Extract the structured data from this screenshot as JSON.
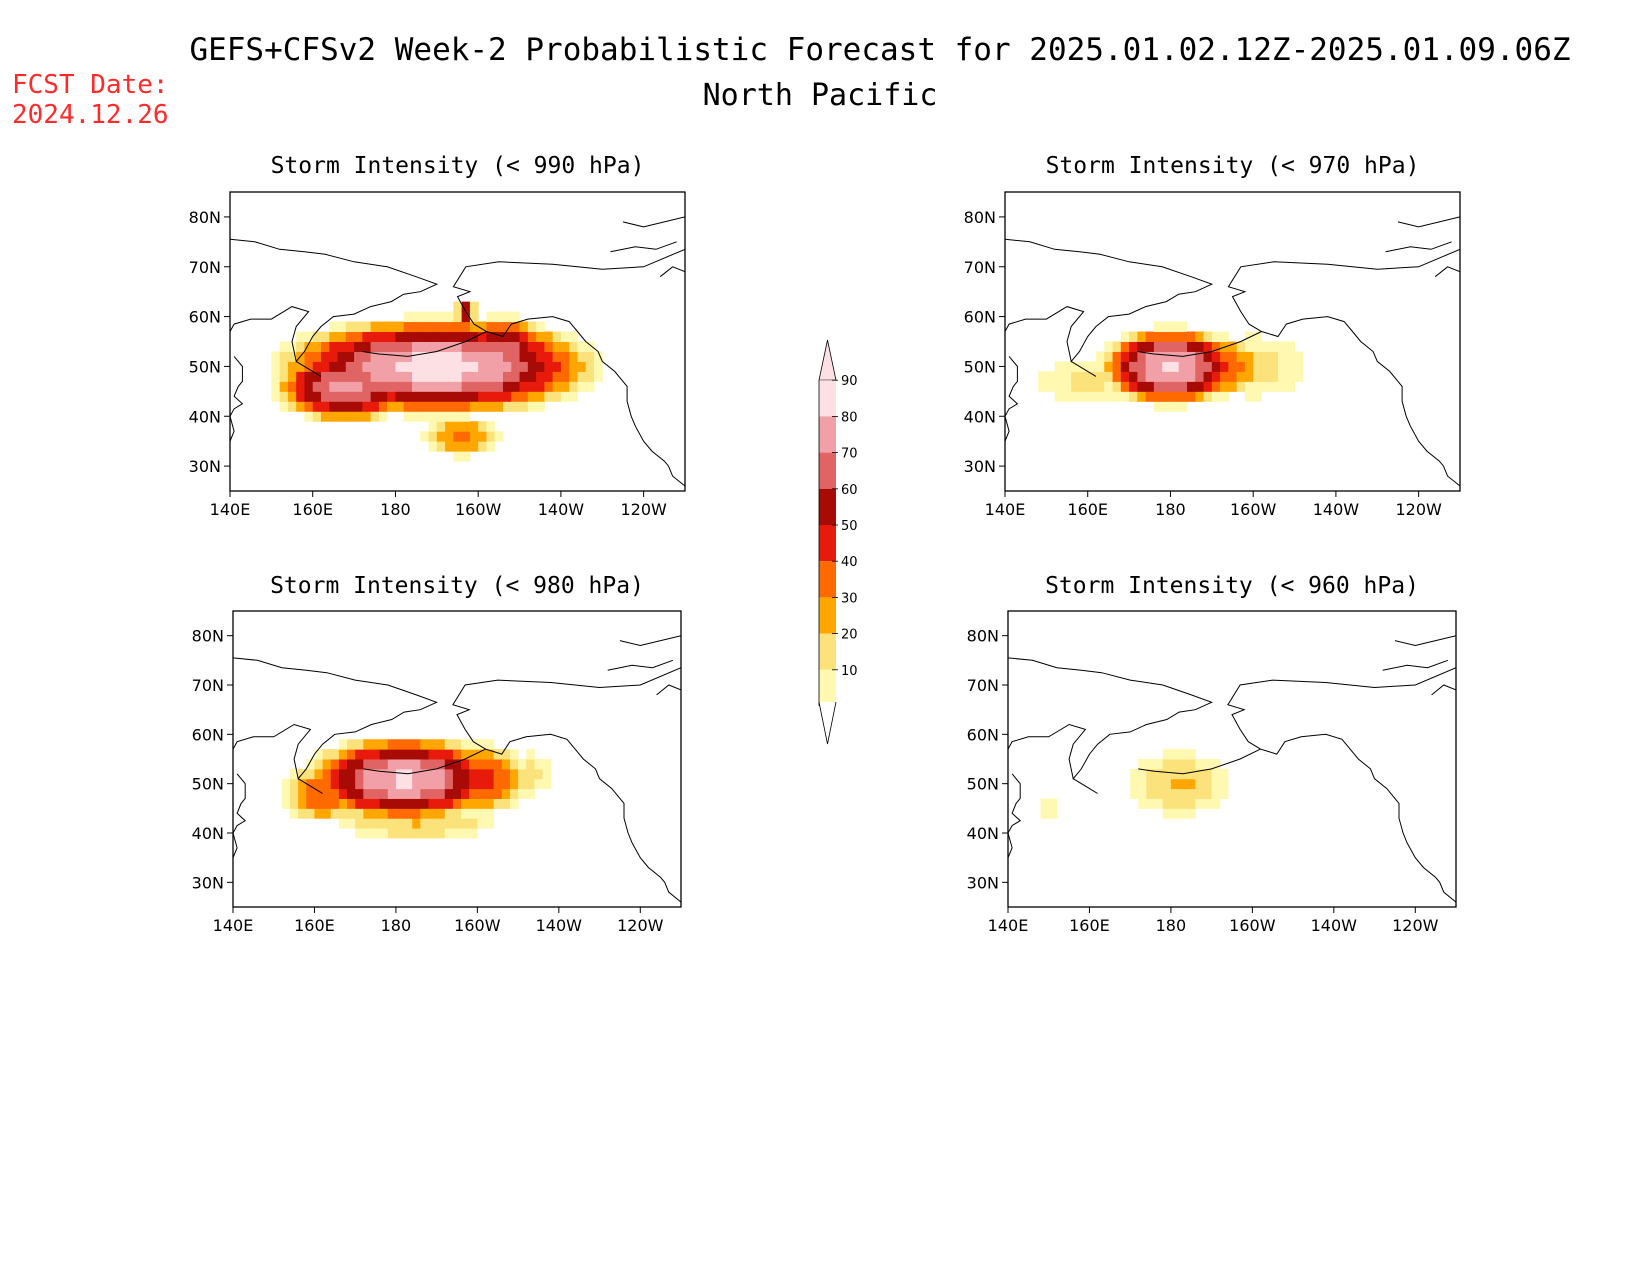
{
  "header": {
    "title": "GEFS+CFSv2 Week-2 Probabilistic Forecast for 2025.01.02.12Z-2025.01.09.06Z",
    "subtitle": "North Pacific",
    "fcst_label": "FCST Date:",
    "fcst_date": "2024.12.26"
  },
  "colors": {
    "title_red": "#ff2a2a",
    "levels": [
      {
        "min": 10,
        "color": "#fff8b0"
      },
      {
        "min": 20,
        "color": "#fbe27a"
      },
      {
        "min": 30,
        "color": "#ffa600"
      },
      {
        "min": 40,
        "color": "#ff6a00"
      },
      {
        "min": 50,
        "color": "#e81a0c"
      },
      {
        "min": 60,
        "color": "#a80b05"
      },
      {
        "min": 70,
        "color": "#e06464"
      },
      {
        "min": 80,
        "color": "#f0a0a6"
      },
      {
        "min": 90,
        "color": "#fde0e4"
      }
    ]
  },
  "colorbar": {
    "ticks": [
      "10",
      "20",
      "30",
      "40",
      "50",
      "60",
      "70",
      "80",
      "90"
    ]
  },
  "axes": {
    "lat_ticks": [
      "30N",
      "40N",
      "50N",
      "60N",
      "70N",
      "80N"
    ],
    "lon_ticks": [
      "140E",
      "160E",
      "180",
      "160W",
      "140W",
      "120W"
    ]
  },
  "chart_data": [
    {
      "type": "heatmap",
      "title": "Storm Intensity (< 990 hPa)",
      "lon_range": [
        140,
        250
      ],
      "lat_range": [
        25,
        85
      ],
      "lon_convention": "degrees east",
      "blobs": [
        {
          "lon": 190,
          "lat": 50,
          "rx": 32,
          "ry": 8,
          "peak": 95
        },
        {
          "lon": 168,
          "lat": 46,
          "rx": 14,
          "ry": 6,
          "peak": 85
        },
        {
          "lon": 206,
          "lat": 53,
          "rx": 10,
          "ry": 6,
          "peak": 75
        },
        {
          "lon": 197,
          "lat": 61,
          "rx": 2,
          "ry": 2,
          "peak": 78
        },
        {
          "lon": 196,
          "lat": 36,
          "rx": 8,
          "ry": 3.5,
          "peak": 42
        },
        {
          "lon": 217,
          "lat": 54,
          "rx": 3,
          "ry": 3,
          "peak": 45
        }
      ]
    },
    {
      "type": "heatmap",
      "title": "Storm Intensity (< 970 hPa)",
      "lon_range": [
        140,
        250
      ],
      "lat_range": [
        25,
        85
      ],
      "lon_convention": "degrees east",
      "blobs": [
        {
          "lon": 180,
          "lat": 50,
          "rx": 14,
          "ry": 6.5,
          "peak": 92
        },
        {
          "lon": 193,
          "lat": 50,
          "rx": 8,
          "ry": 5,
          "peak": 50
        },
        {
          "lon": 200,
          "lat": 50,
          "rx": 12,
          "ry": 6,
          "peak": 24
        },
        {
          "lon": 160,
          "lat": 47,
          "rx": 12,
          "ry": 4,
          "peak": 22
        }
      ]
    },
    {
      "type": "heatmap",
      "title": "Storm Intensity (< 980 hPa)",
      "lon_range": [
        140,
        250
      ],
      "lat_range": [
        25,
        85
      ],
      "lon_convention": "degrees east",
      "blobs": [
        {
          "lon": 182,
          "lat": 51,
          "rx": 20,
          "ry": 7,
          "peak": 92
        },
        {
          "lon": 200,
          "lat": 51,
          "rx": 11,
          "ry": 6,
          "peak": 55
        },
        {
          "lon": 162,
          "lat": 48,
          "rx": 8,
          "ry": 5,
          "peak": 48
        },
        {
          "lon": 185,
          "lat": 42,
          "rx": 18,
          "ry": 3,
          "peak": 30
        },
        {
          "lon": 213,
          "lat": 52,
          "rx": 5,
          "ry": 4,
          "peak": 25
        }
      ]
    },
    {
      "type": "heatmap",
      "title": "Storm Intensity (< 960 hPa)",
      "lon_range": [
        140,
        250
      ],
      "lat_range": [
        25,
        85
      ],
      "lon_convention": "degrees east",
      "blobs": [
        {
          "lon": 182,
          "lat": 50,
          "rx": 11,
          "ry": 6,
          "peak": 28
        },
        {
          "lon": 183,
          "lat": 49.5,
          "rx": 4,
          "ry": 1.5,
          "peak": 38
        },
        {
          "lon": 150,
          "lat": 45,
          "rx": 3,
          "ry": 2,
          "peak": 14
        }
      ]
    }
  ]
}
